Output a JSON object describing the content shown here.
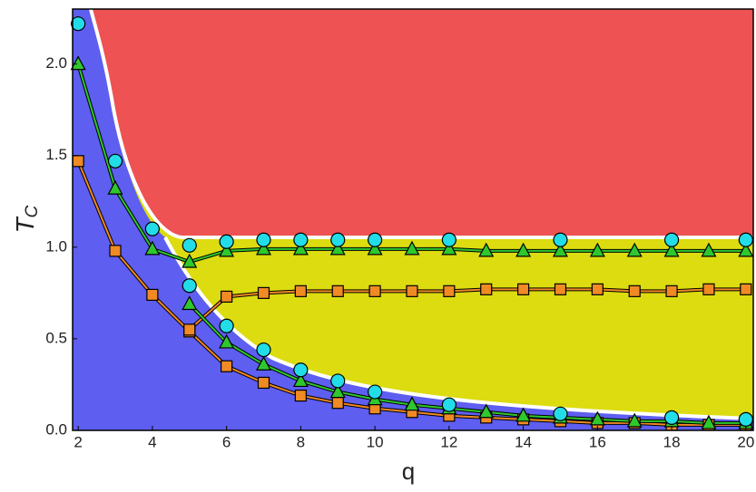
{
  "chart_data": {
    "type": "scatter",
    "xlabel": "q",
    "ylabel": "T",
    "ylabel_subscript": "C",
    "xlim": [
      1.85,
      20.2
    ],
    "ylim": [
      0,
      2.3
    ],
    "xticks": [
      2,
      4,
      6,
      8,
      10,
      12,
      14,
      16,
      18,
      20
    ],
    "yticks": [
      {
        "value": 0,
        "label": "0.0"
      },
      0.5,
      {
        "value": 1,
        "label": "1.0"
      },
      1.5,
      {
        "value": 2,
        "label": "2.0"
      }
    ],
    "series": [
      {
        "marker": "square",
        "color": "#f08a24",
        "line": true,
        "x": [
          2,
          3,
          4,
          5,
          6,
          7,
          8,
          9,
          10,
          11,
          12,
          13,
          14,
          15,
          16,
          17,
          18,
          19,
          20
        ],
        "values": [
          1.47,
          0.98,
          0.74,
          0.54,
          0.35,
          0.26,
          0.19,
          0.15,
          0.12,
          0.1,
          0.08,
          0.07,
          0.06,
          0.05,
          0.04,
          0.04,
          0.03,
          0.03,
          0.03
        ]
      },
      {
        "marker": "square",
        "color": "#f08a24",
        "line": true,
        "x": [
          5,
          6,
          7,
          8,
          9,
          10,
          11,
          12,
          13,
          14,
          15,
          16,
          17,
          18,
          19,
          20
        ],
        "values": [
          0.55,
          0.73,
          0.75,
          0.76,
          0.76,
          0.76,
          0.76,
          0.76,
          0.77,
          0.77,
          0.77,
          0.77,
          0.76,
          0.76,
          0.77,
          0.77
        ]
      },
      {
        "marker": "triangle",
        "color": "#2ec82e",
        "line": true,
        "x": [
          2,
          3,
          4,
          5,
          6,
          7,
          8,
          9,
          10,
          11,
          12,
          13,
          14,
          15,
          16,
          17,
          18,
          19,
          20
        ],
        "values": [
          2.0,
          1.32,
          0.99,
          0.92,
          0.98,
          0.99,
          0.99,
          0.99,
          0.99,
          0.99,
          0.99,
          0.98,
          0.98,
          0.98,
          0.98,
          0.98,
          0.98,
          0.98,
          0.98
        ]
      },
      {
        "marker": "triangle",
        "color": "#2ec82e",
        "line": true,
        "x": [
          5,
          6,
          7,
          8,
          9,
          10,
          11,
          12,
          13,
          14,
          15,
          16,
          17,
          18,
          19,
          20
        ],
        "values": [
          0.69,
          0.48,
          0.36,
          0.27,
          0.21,
          0.17,
          0.14,
          0.12,
          0.1,
          0.08,
          0.07,
          0.06,
          0.05,
          0.05,
          0.04,
          0.04
        ]
      },
      {
        "marker": "circle",
        "color": "#22dde8",
        "line": false,
        "x": [
          2,
          3,
          4,
          5,
          6,
          7,
          8,
          9,
          10,
          12,
          15,
          18,
          20
        ],
        "values": [
          2.22,
          1.47,
          1.1,
          1.01,
          1.03,
          1.04,
          1.04,
          1.04,
          1.04,
          1.04,
          1.04,
          1.04,
          1.04
        ]
      },
      {
        "marker": "circle",
        "color": "#22dde8",
        "line": false,
        "x": [
          5,
          6,
          7,
          8,
          9,
          10,
          12,
          15,
          18,
          20
        ],
        "values": [
          0.79,
          0.57,
          0.44,
          0.33,
          0.27,
          0.21,
          0.14,
          0.09,
          0.07,
          0.06
        ]
      }
    ]
  }
}
